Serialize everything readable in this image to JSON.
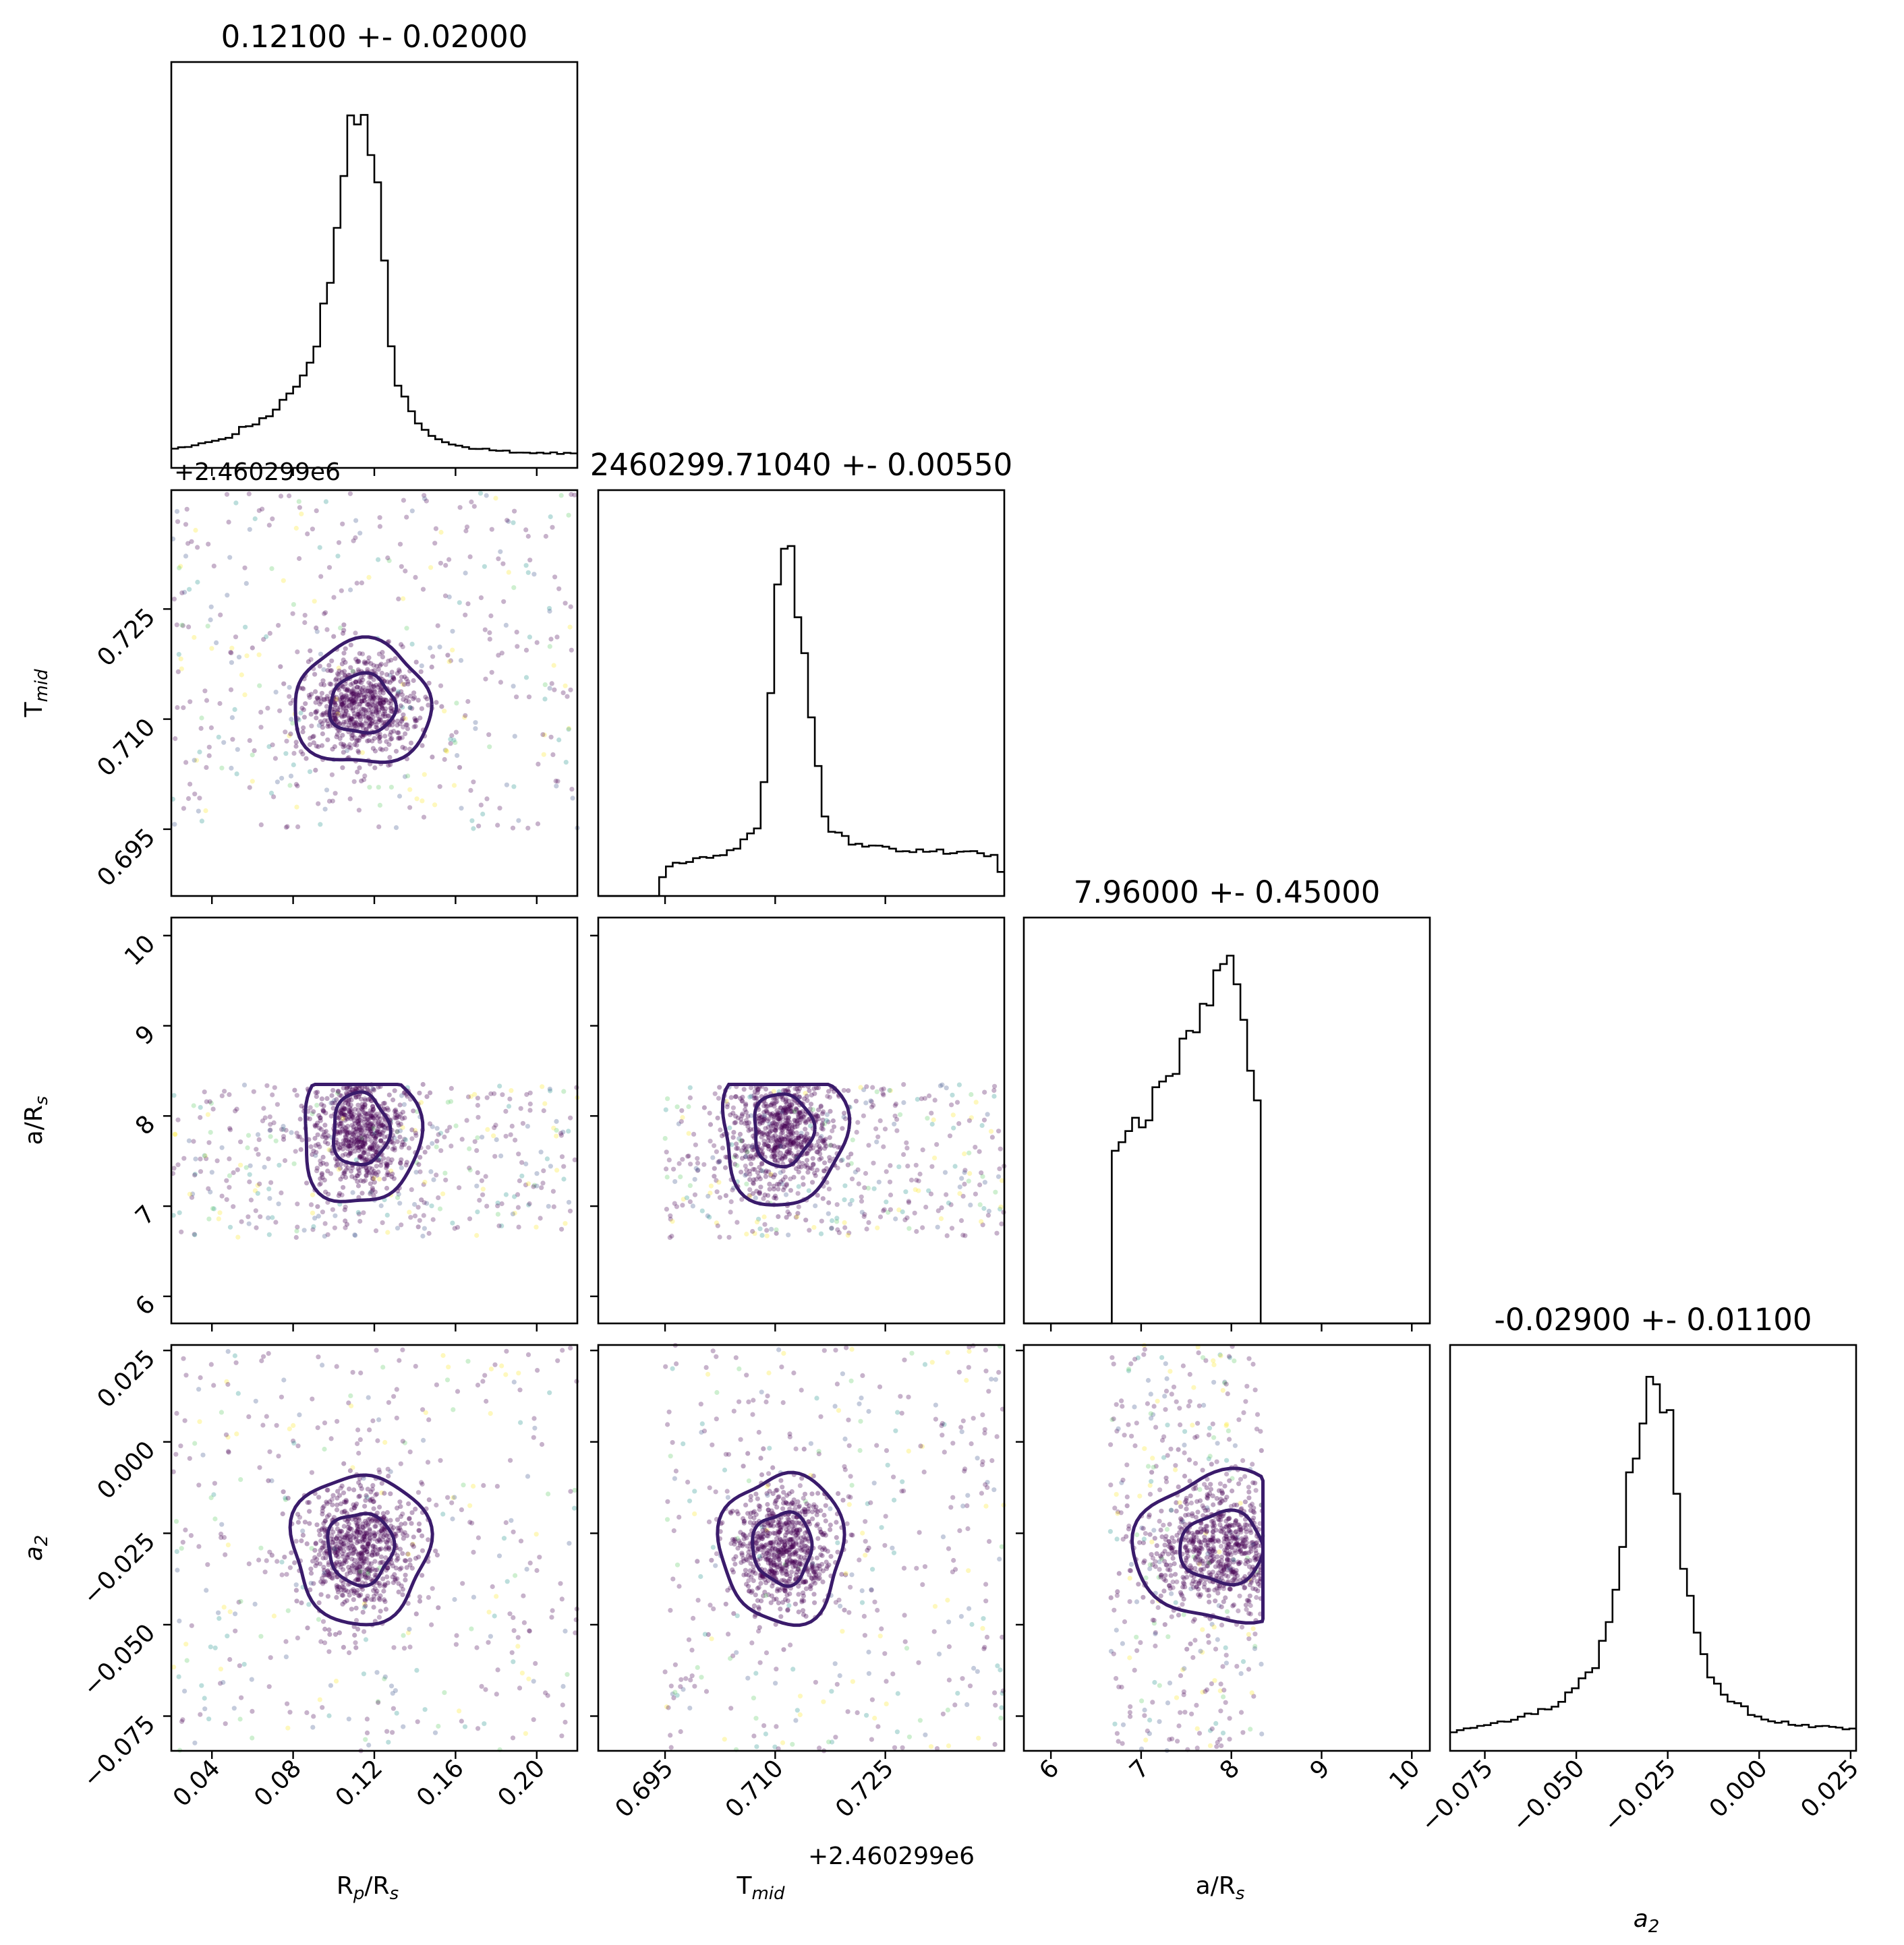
{
  "chart_data": {
    "type": "corner",
    "parameters": [
      {
        "key": "rp",
        "label_base": "R",
        "label_sub": "p",
        "label_tail": "/R",
        "label_tail_sub": "s",
        "title": "0.12100 +- 0.02000",
        "range": [
          0.02,
          0.22
        ],
        "ticks": [
          0.04,
          0.08,
          0.12,
          0.16,
          0.2
        ],
        "tick_labels": [
          "0.04",
          "0.08",
          "0.12",
          "0.16",
          "0.20"
        ],
        "offset": ""
      },
      {
        "key": "tmid",
        "label_base": "T",
        "label_sub": "mid",
        "label_tail": "",
        "label_tail_sub": "",
        "title": "2460299.71040 +- 0.00550",
        "range": [
          0.6859,
          0.7412
        ],
        "ticks": [
          0.695,
          0.71,
          0.725
        ],
        "tick_labels": [
          "0.695",
          "0.710",
          "0.725"
        ],
        "offset": "+2.460299e6"
      },
      {
        "key": "ars",
        "label_base": "a/R",
        "label_sub": "s",
        "label_tail": "",
        "label_tail_sub": "",
        "title": "7.96000 +- 0.45000",
        "range": [
          5.7,
          10.2
        ],
        "ticks": [
          6,
          7,
          8,
          9,
          10
        ],
        "tick_labels": [
          "6",
          "7",
          "8",
          "9",
          "10"
        ],
        "offset": ""
      },
      {
        "key": "a2",
        "label_base": "a",
        "label_sub": "2",
        "label_tail": "",
        "label_tail_sub": "",
        "label_italic": true,
        "title": "-0.02900 +- 0.01100",
        "range": [
          -0.0845,
          0.0265
        ],
        "ticks": [
          -0.075,
          -0.05,
          -0.025,
          0.0,
          0.025
        ],
        "tick_labels": [
          "−0.075",
          "−0.050",
          "−0.025",
          "0.000",
          "0.025"
        ],
        "offset": ""
      }
    ],
    "histograms": [
      {
        "param": "rp",
        "x": [
          0.02,
          0.03,
          0.04,
          0.05,
          0.06,
          0.07,
          0.08,
          0.09,
          0.1,
          0.105,
          0.11,
          0.115,
          0.12,
          0.125,
          0.13,
          0.14,
          0.15,
          0.16,
          0.17,
          0.18,
          0.19,
          0.2,
          0.22
        ],
        "values": [
          0.05,
          0.06,
          0.07,
          0.09,
          0.12,
          0.15,
          0.2,
          0.3,
          0.55,
          0.8,
          1.0,
          0.95,
          0.85,
          0.55,
          0.25,
          0.13,
          0.08,
          0.06,
          0.05,
          0.05,
          0.04,
          0.04,
          0.04
        ]
      },
      {
        "param": "tmid",
        "x": [
          0.686,
          0.694,
          0.695,
          0.7,
          0.705,
          0.708,
          0.71,
          0.711,
          0.712,
          0.713,
          0.715,
          0.717,
          0.72,
          0.725,
          0.73,
          0.735,
          0.74,
          0.741
        ],
        "values": [
          0.0,
          0.0,
          0.08,
          0.1,
          0.13,
          0.2,
          0.7,
          1.0,
          0.95,
          0.8,
          0.45,
          0.18,
          0.15,
          0.13,
          0.12,
          0.12,
          0.11,
          0.05
        ]
      },
      {
        "param": "ars",
        "x": [
          5.7,
          6.6,
          6.65,
          7.0,
          7.3,
          7.6,
          7.8,
          7.95,
          8.1,
          8.3,
          8.35,
          10.2
        ],
        "values": [
          0.0,
          0.0,
          0.45,
          0.55,
          0.65,
          0.8,
          0.9,
          1.0,
          0.95,
          0.55,
          0.0,
          0.0
        ],
        "sample_bounds": [
          6.65,
          8.35
        ]
      },
      {
        "param": "a2",
        "x": [
          -0.0845,
          -0.075,
          -0.065,
          -0.055,
          -0.045,
          -0.04,
          -0.035,
          -0.031,
          -0.029,
          -0.027,
          -0.025,
          -0.022,
          -0.018,
          -0.014,
          -0.01,
          -0.005,
          0.0,
          0.01,
          0.0265
        ],
        "values": [
          0.05,
          0.07,
          0.09,
          0.13,
          0.22,
          0.4,
          0.75,
          0.95,
          1.0,
          0.9,
          0.95,
          0.6,
          0.35,
          0.22,
          0.15,
          0.12,
          0.09,
          0.07,
          0.06
        ]
      }
    ],
    "scatter": [
      {
        "x": "tmid",
        "y": "rp",
        "center": [
          0.114,
          0.712
        ],
        "sigma": [
          0.014,
          0.0035
        ],
        "bounds_y": [
          0.695,
          0.7412
        ]
      },
      {
        "x": "ars",
        "y": "rp",
        "center": [
          0.113,
          7.85
        ],
        "sigma": [
          0.012,
          0.35
        ],
        "bounds_y": [
          6.65,
          8.35
        ]
      },
      {
        "x": "ars",
        "y": "tmid",
        "center": [
          0.711,
          7.85
        ],
        "sigma": [
          0.0035,
          0.35
        ],
        "bounds_x": [
          0.695,
          0.7412
        ],
        "bounds_y": [
          6.65,
          8.35
        ]
      },
      {
        "x": "a2",
        "y": "rp",
        "center": [
          0.113,
          -0.029
        ],
        "sigma": [
          0.014,
          0.0085
        ]
      },
      {
        "x": "a2",
        "y": "tmid",
        "center": [
          0.711,
          -0.029
        ],
        "sigma": [
          0.0035,
          0.0085
        ],
        "bounds_x": [
          0.695,
          0.7412
        ]
      },
      {
        "x": "a2",
        "y": "ars",
        "center": [
          7.9,
          -0.029
        ],
        "sigma": [
          0.4,
          0.0085
        ],
        "bounds_x": [
          6.65,
          8.35
        ]
      }
    ],
    "colormap": [
      "#440154",
      "#3b528b",
      "#21918c",
      "#5ec962",
      "#fde725"
    ],
    "line_color": "#3a1b6b",
    "grid": false
  }
}
